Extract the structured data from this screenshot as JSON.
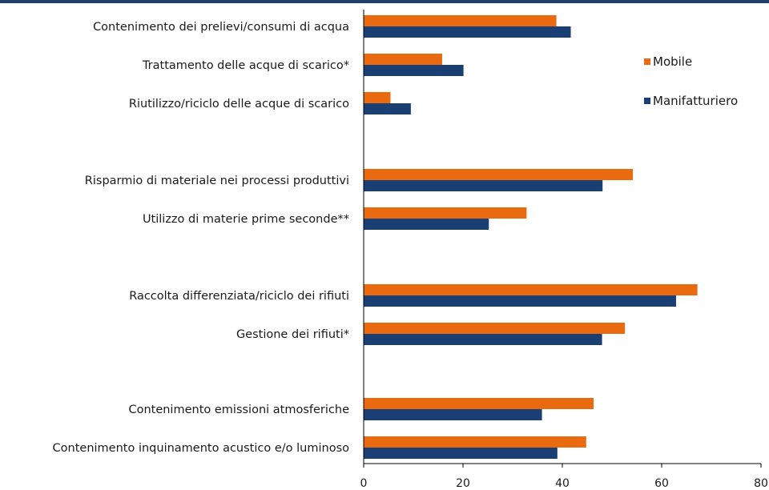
{
  "chart_data": {
    "type": "bar",
    "orientation": "horizontal",
    "categories": [
      "Contenimento dei prelievi/consumi di acqua",
      "Trattamento delle acque di scarico*",
      "Riutilizzo/riciclo delle acque di scarico",
      "Risparmio di materiale  nei processi produttivi",
      "Utilizzo di materie prime seconde**",
      "Raccolta differenziata/riciclo dei rifiuti",
      "Gestione dei rifiuti*",
      "Contenimento emissioni atmosferiche",
      "Contenimento inquinamento acustico e/o luminoso"
    ],
    "series": [
      {
        "name": "Mobile",
        "color": "#ea6a10",
        "values": [
          38.8,
          15.8,
          5.4,
          54.2,
          32.8,
          67.2,
          52.6,
          46.3,
          44.8
        ]
      },
      {
        "name": "Manifatturiero",
        "color": "#1a3f75",
        "values": [
          41.7,
          20.1,
          9.5,
          48.1,
          25.2,
          62.9,
          48.0,
          35.9,
          39.0
        ]
      }
    ],
    "xlim": [
      0,
      80
    ],
    "xticks": [
      "0",
      "20",
      "40",
      "60",
      "80"
    ],
    "legend_position": "right",
    "grid": false
  }
}
